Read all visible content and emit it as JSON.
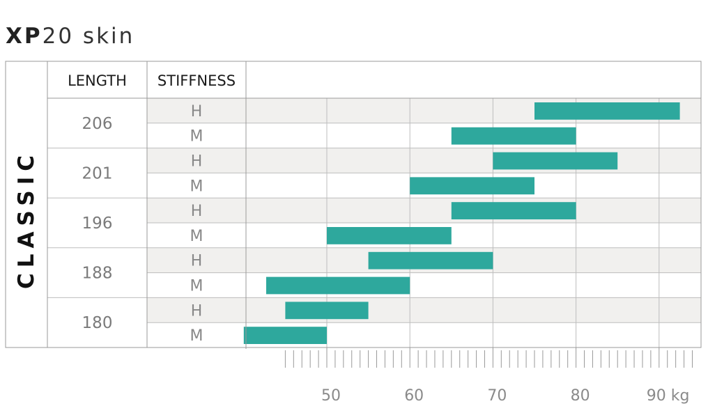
{
  "title": {
    "bold": "XP",
    "rest": "20 skin"
  },
  "side_label": "CLASSIC",
  "headers": {
    "length": "LENGTH",
    "stiffness": "STIFFNESS"
  },
  "colors": {
    "bar": "#2ea89d",
    "stripe": "#f1f0ee",
    "grid": "#bdbdbd",
    "border": "#9a9a9a"
  },
  "chart_data": {
    "type": "bar",
    "orientation": "horizontal-range",
    "x_unit": "kg",
    "xlim": [
      40,
      95
    ],
    "x_ticks": [
      50,
      60,
      70,
      80,
      90
    ],
    "x_tick_labels": [
      "50",
      "60",
      "70",
      "80",
      "90 kg"
    ],
    "minor_tick_step": 1,
    "minor_tick_range": [
      45,
      94
    ],
    "grid": true,
    "rows": [
      {
        "length": "206",
        "stiffness": "H",
        "min": 75,
        "max": 92.5
      },
      {
        "length": "206",
        "stiffness": "M",
        "min": 65,
        "max": 80
      },
      {
        "length": "201",
        "stiffness": "H",
        "min": 70,
        "max": 85
      },
      {
        "length": "201",
        "stiffness": "M",
        "min": 60,
        "max": 75
      },
      {
        "length": "196",
        "stiffness": "H",
        "min": 65,
        "max": 80
      },
      {
        "length": "196",
        "stiffness": "M",
        "min": 50,
        "max": 65
      },
      {
        "length": "188",
        "stiffness": "H",
        "min": 55,
        "max": 70
      },
      {
        "length": "188",
        "stiffness": "M",
        "min": 42.7,
        "max": 60
      },
      {
        "length": "180",
        "stiffness": "H",
        "min": 45,
        "max": 55
      },
      {
        "length": "180",
        "stiffness": "M",
        "min": 40,
        "max": 50
      }
    ]
  }
}
